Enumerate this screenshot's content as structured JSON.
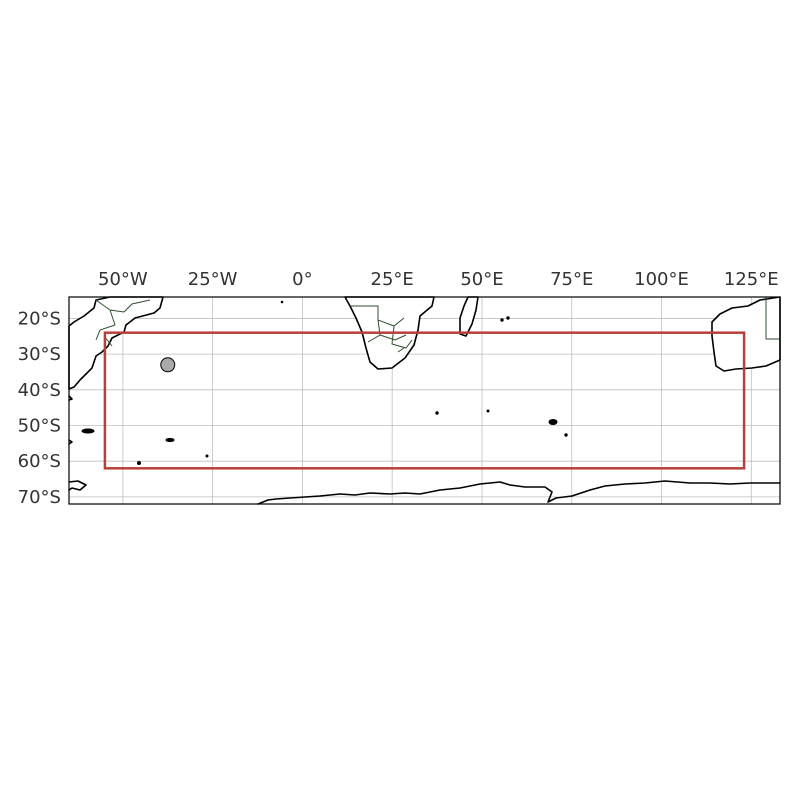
{
  "map": {
    "projection": "PlateCarree",
    "extent": {
      "lon": [
        -65,
        133
      ],
      "lat": [
        -72,
        -14
      ]
    },
    "x_ticks": [
      {
        "lon": -50,
        "label": "50°W"
      },
      {
        "lon": -25,
        "label": "25°W"
      },
      {
        "lon": 0,
        "label": "0°"
      },
      {
        "lon": 25,
        "label": "25°E"
      },
      {
        "lon": 50,
        "label": "50°E"
      },
      {
        "lon": 75,
        "label": "75°E"
      },
      {
        "lon": 100,
        "label": "100°E"
      },
      {
        "lon": 125,
        "label": "125°E"
      }
    ],
    "y_ticks": [
      {
        "lat": -20,
        "label": "20°S"
      },
      {
        "lat": -30,
        "label": "30°S"
      },
      {
        "lat": -40,
        "label": "40°S"
      },
      {
        "lat": -50,
        "label": "50°S"
      },
      {
        "lat": -60,
        "label": "60°S"
      },
      {
        "lat": -70,
        "label": "70°S"
      }
    ],
    "gridlines": true,
    "region_box": {
      "lon": [
        -55,
        123
      ],
      "lat": [
        -62,
        -24
      ],
      "color": "#b8403a"
    },
    "point_marker": {
      "lon": -37.5,
      "lat": -33,
      "color": "#a9a9a9"
    }
  }
}
